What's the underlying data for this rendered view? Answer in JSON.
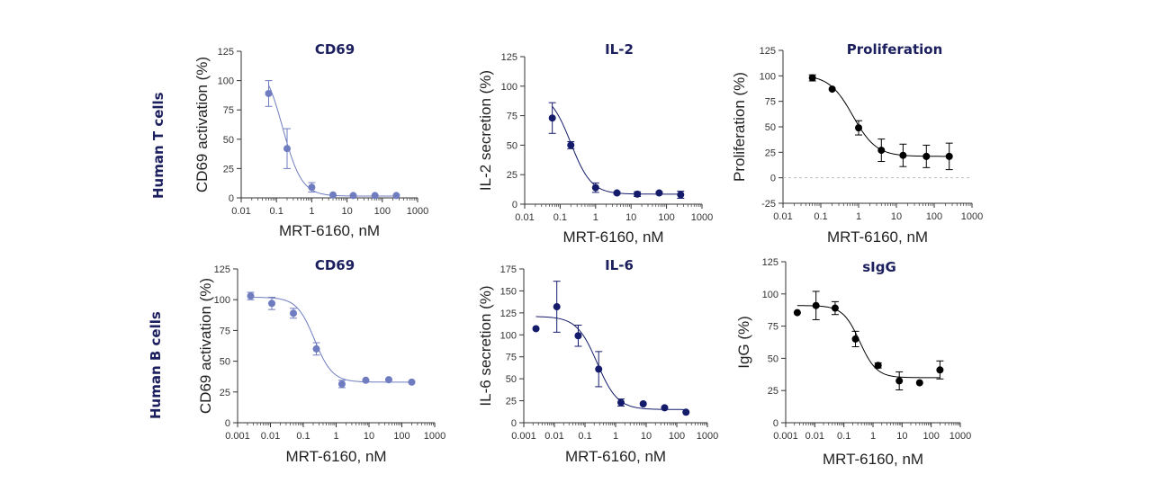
{
  "row_labels": {
    "top": "Human  T cells",
    "bottom": "Human B cells"
  },
  "chart_data": [
    {
      "type": "scatter",
      "title": "CD69",
      "xlabel": "MRT-6160, nM",
      "ylabel": "CD69 activation (%)",
      "xscale": "log",
      "xlim": [
        0.01,
        1000
      ],
      "ylim": [
        0,
        125
      ],
      "xticks": [
        "0.01",
        "0.1",
        "1",
        "10",
        "100",
        "1000"
      ],
      "yticks": [
        0,
        25,
        50,
        75,
        100,
        125
      ],
      "color": "#6f7cc0",
      "points": [
        {
          "x": 0.06,
          "y": 89,
          "err": 11
        },
        {
          "x": 0.2,
          "y": 42,
          "err": 17
        },
        {
          "x": 1,
          "y": 9,
          "err": 4
        },
        {
          "x": 4,
          "y": 2.5,
          "err": 0
        },
        {
          "x": 15,
          "y": 2,
          "err": 0
        },
        {
          "x": 62,
          "y": 2,
          "err": 0
        },
        {
          "x": 250,
          "y": 2,
          "err": 0
        }
      ],
      "fit": {
        "top": 118,
        "bottom": 1.5,
        "ic50": 0.15,
        "hill": 1.6
      }
    },
    {
      "type": "scatter",
      "title": "IL-2",
      "xlabel": "MRT-6160, nM",
      "ylabel": "IL-2 secretion (%)",
      "xscale": "log",
      "xlim": [
        0.01,
        1000
      ],
      "ylim": [
        0,
        125
      ],
      "xticks": [
        "0.01",
        "0.1",
        "1",
        "10",
        "100",
        "1000"
      ],
      "yticks": [
        0,
        25,
        50,
        75,
        100,
        125
      ],
      "color": "#141b6b",
      "points": [
        {
          "x": 0.06,
          "y": 73,
          "err": 13
        },
        {
          "x": 0.2,
          "y": 50,
          "err": 3
        },
        {
          "x": 1,
          "y": 14,
          "err": 4
        },
        {
          "x": 4,
          "y": 9.5,
          "err": 1
        },
        {
          "x": 15,
          "y": 8.5,
          "err": 2
        },
        {
          "x": 62,
          "y": 9.5,
          "err": 1
        },
        {
          "x": 250,
          "y": 8,
          "err": 3
        }
      ],
      "fit": {
        "top": 95,
        "bottom": 8.5,
        "ic50": 0.2,
        "hill": 1.5
      }
    },
    {
      "type": "scatter",
      "title": "Proliferation",
      "xlabel": "MRT-6160, nM",
      "ylabel": "Proliferation (%)",
      "xscale": "log",
      "xlim": [
        0.01,
        1000
      ],
      "ylim": [
        -25,
        125
      ],
      "xticks": [
        "0.01",
        "0.1",
        "1",
        "10",
        "100",
        "1000"
      ],
      "yticks": [
        -25,
        0,
        25,
        50,
        75,
        100,
        125
      ],
      "zero_line": true,
      "color": "#000000",
      "points": [
        {
          "x": 0.06,
          "y": 98,
          "err": 3
        },
        {
          "x": 0.2,
          "y": 87,
          "err": 0
        },
        {
          "x": 1,
          "y": 49,
          "err": 7
        },
        {
          "x": 4,
          "y": 27,
          "err": 11
        },
        {
          "x": 15,
          "y": 22,
          "err": 11
        },
        {
          "x": 62,
          "y": 21,
          "err": 11
        },
        {
          "x": 250,
          "y": 21,
          "err": 13
        }
      ],
      "fit": {
        "top": 101,
        "bottom": 21,
        "ic50": 0.7,
        "hill": 1.4
      }
    },
    {
      "type": "scatter",
      "title": "CD69",
      "xlabel": "MRT-6160, nM",
      "ylabel": "CD69 activation (%)",
      "xscale": "log",
      "xlim": [
        0.001,
        1000
      ],
      "ylim": [
        0,
        125
      ],
      "xticks": [
        "0.001",
        "0.01",
        "0.1",
        "1",
        "10",
        "100",
        "1000"
      ],
      "yticks": [
        0,
        25,
        50,
        75,
        100,
        125
      ],
      "color": "#6f7cc0",
      "points": [
        {
          "x": 0.0025,
          "y": 103,
          "err": 3
        },
        {
          "x": 0.011,
          "y": 97,
          "err": 5
        },
        {
          "x": 0.05,
          "y": 89,
          "err": 4
        },
        {
          "x": 0.25,
          "y": 60,
          "err": 5
        },
        {
          "x": 1.5,
          "y": 31.5,
          "err": 3
        },
        {
          "x": 8,
          "y": 34.5,
          "err": 0
        },
        {
          "x": 40,
          "y": 35,
          "err": 0
        },
        {
          "x": 200,
          "y": 33,
          "err": 0
        }
      ],
      "fit": {
        "top": 102,
        "bottom": 33,
        "ic50": 0.22,
        "hill": 1.6
      }
    },
    {
      "type": "scatter",
      "title": "IL-6",
      "xlabel": "MRT-6160, nM",
      "ylabel": "IL-6 secretion (%)",
      "xscale": "log",
      "xlim": [
        0.001,
        1000
      ],
      "ylim": [
        0,
        175
      ],
      "xticks": [
        "0.001",
        "0.01",
        "0.1",
        "1",
        "10",
        "100",
        "1000"
      ],
      "yticks": [
        0,
        25,
        50,
        75,
        100,
        125,
        150,
        175
      ],
      "color": "#141b6b",
      "points": [
        {
          "x": 0.0025,
          "y": 107,
          "err": 0
        },
        {
          "x": 0.012,
          "y": 132,
          "err": 29
        },
        {
          "x": 0.06,
          "y": 99,
          "err": 12
        },
        {
          "x": 0.28,
          "y": 61,
          "err": 20
        },
        {
          "x": 1.5,
          "y": 23,
          "err": 4
        },
        {
          "x": 8,
          "y": 21.5,
          "err": 0
        },
        {
          "x": 40,
          "y": 17,
          "err": 0
        },
        {
          "x": 200,
          "y": 12,
          "err": 0
        }
      ],
      "fit": {
        "top": 121,
        "bottom": 15,
        "ic50": 0.25,
        "hill": 1.3
      }
    },
    {
      "type": "scatter",
      "title": "sIgG",
      "xlabel": "MRT-6160, nM",
      "ylabel": "IgG (%)",
      "xscale": "log",
      "xlim": [
        0.001,
        1000
      ],
      "ylim": [
        0,
        125
      ],
      "xticks": [
        "0.001",
        "0.01",
        "0.1",
        "1",
        "10",
        "100",
        "1000"
      ],
      "yticks": [
        0,
        25,
        50,
        75,
        100,
        125
      ],
      "color": "#000000",
      "points": [
        {
          "x": 0.0025,
          "y": 85.5,
          "err": 0
        },
        {
          "x": 0.011,
          "y": 91,
          "err": 11
        },
        {
          "x": 0.05,
          "y": 89,
          "err": 5
        },
        {
          "x": 0.25,
          "y": 65,
          "err": 6
        },
        {
          "x": 1.5,
          "y": 44.5,
          "err": 2
        },
        {
          "x": 8,
          "y": 32.5,
          "err": 7
        },
        {
          "x": 40,
          "y": 31,
          "err": 0
        },
        {
          "x": 200,
          "y": 41,
          "err": 7
        }
      ],
      "fit": {
        "top": 91,
        "bottom": 35,
        "ic50": 0.35,
        "hill": 1.5
      }
    }
  ]
}
